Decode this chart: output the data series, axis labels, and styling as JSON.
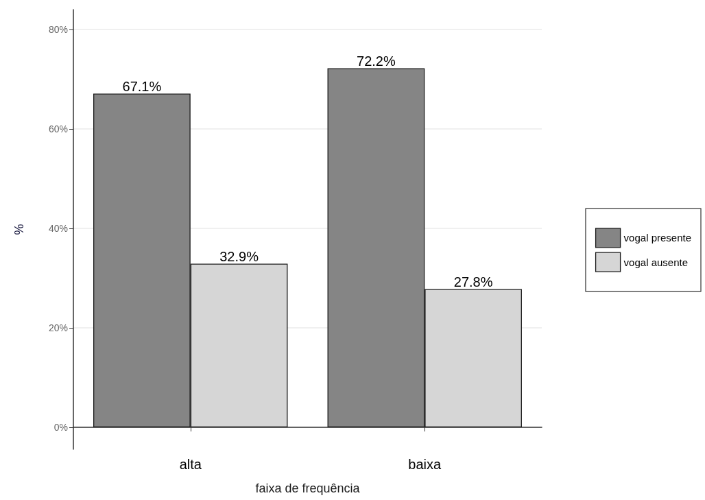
{
  "chart_data": {
    "type": "bar",
    "xlabel": "faixa de frequência",
    "ylabel": "%",
    "categories": [
      "alta",
      "baixa"
    ],
    "series": [
      {
        "name": "vogal presente",
        "color": "#858585",
        "values": [
          67.1,
          72.2
        ],
        "value_labels": [
          "67.1%",
          "72.2%"
        ]
      },
      {
        "name": "vogal ausente",
        "color": "#d6d6d6",
        "values": [
          32.9,
          27.8
        ],
        "value_labels": [
          "32.9%",
          "27.8%"
        ]
      }
    ],
    "ylim": [
      -4.4,
      84
    ],
    "yticks": [
      {
        "value": 0,
        "label": "0%"
      },
      {
        "value": 20,
        "label": "20%"
      },
      {
        "value": 40,
        "label": "40%"
      },
      {
        "value": 60,
        "label": "60%"
      },
      {
        "value": 80,
        "label": "80%"
      }
    ],
    "grid": "y",
    "legend": "right"
  }
}
